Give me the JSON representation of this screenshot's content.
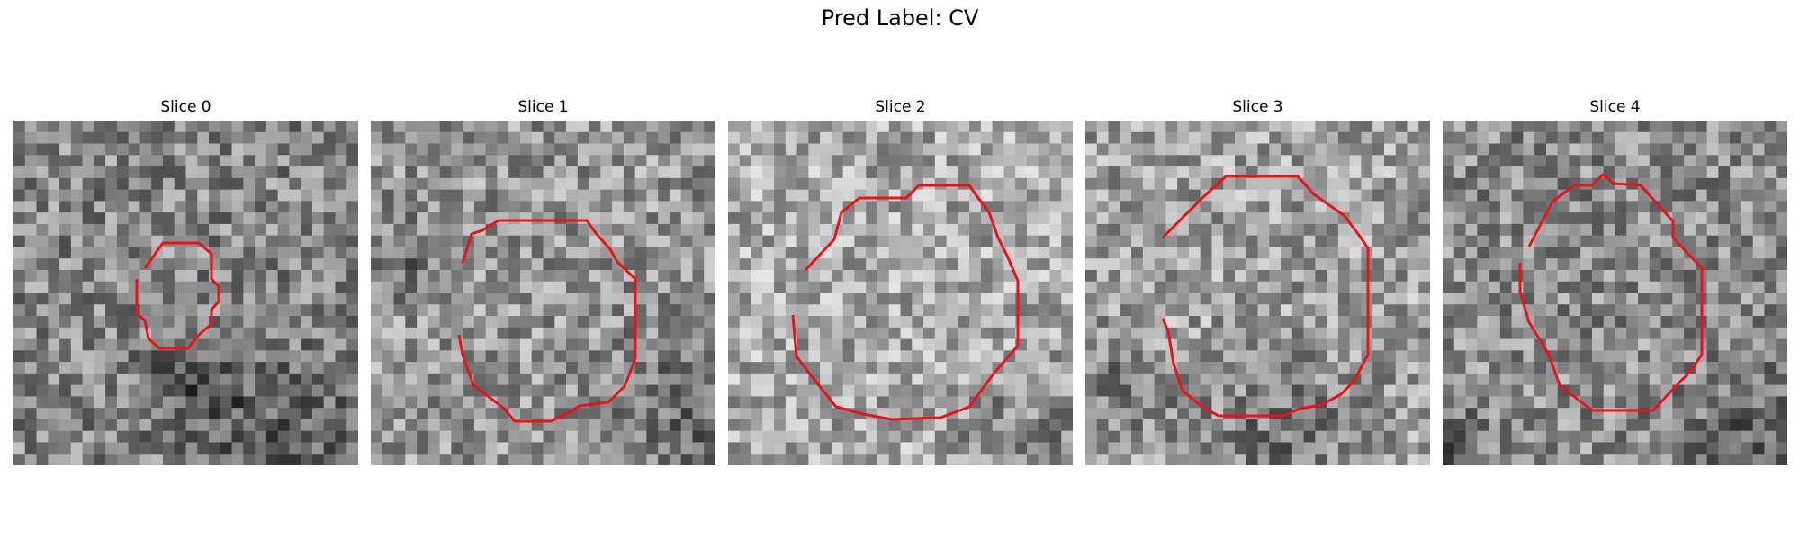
{
  "figure": {
    "title": "Pred Label: CV",
    "contour_color": "#e8141a"
  },
  "slices": [
    {
      "label": "Slice 0",
      "tone": "medium-gray noise, dark lower-right region"
    },
    {
      "label": "Slice 1",
      "tone": "light-gray noise, darker right side"
    },
    {
      "label": "Slice 2",
      "tone": "light-gray noise, dark lower-right corner"
    },
    {
      "label": "Slice 3",
      "tone": "light-gray noise, darker lower half"
    },
    {
      "label": "Slice 4",
      "tone": "medium-gray noise, darker lower-right"
    }
  ]
}
